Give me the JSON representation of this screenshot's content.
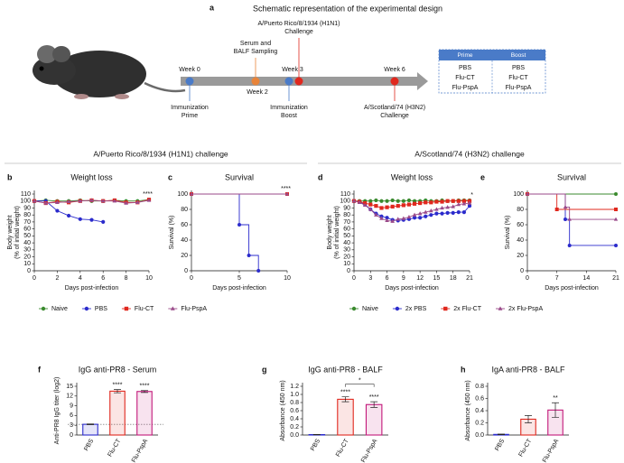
{
  "schematic": {
    "label": "a",
    "title": "Schematic representation of the experimental design",
    "weeks": [
      "Week 0",
      "Week 2",
      "Week 3",
      "Week 6"
    ],
    "events": [
      {
        "lines": [
          "Immunization",
          "Prime"
        ]
      },
      {
        "lines": [
          "Serum and",
          "BALF Sampling"
        ]
      },
      {
        "lines": [
          "A/Puerto Rico/8/1934 (H1N1)",
          "Challenge"
        ]
      },
      {
        "lines": [
          "Immunization",
          "Boost"
        ]
      },
      {
        "lines": [
          "A/Scotland/74 (H3N2)",
          "Challenge"
        ]
      }
    ],
    "table": {
      "header": [
        "Prime",
        "Boost"
      ],
      "rows": [
        [
          "PBS",
          "PBS"
        ],
        [
          "Flu-CT",
          "Flu-CT"
        ],
        [
          "Flu-PspA",
          "Flu-PspA"
        ]
      ]
    }
  },
  "sections": [
    "A/Puerto Rico/8/1934 (H1N1) challenge",
    "A/Scotland/74 (H3N2) challenge"
  ],
  "chart_data": [
    {
      "type": "line",
      "label": "b",
      "title": "Weight loss",
      "xlabel": "Days post-infection",
      "ylabel": [
        "Body weight",
        "(% of initial weight)"
      ],
      "x": [
        0,
        1,
        2,
        3,
        4,
        5,
        6,
        7,
        8,
        9,
        10
      ],
      "xlim": [
        0,
        10
      ],
      "xticks": [
        0,
        2,
        4,
        6,
        8,
        10
      ],
      "ylim": [
        0,
        110
      ],
      "yticks": [
        0,
        10,
        20,
        30,
        40,
        50,
        60,
        70,
        80,
        90,
        100,
        110
      ],
      "annotation": "****",
      "series": [
        {
          "name": "Naive",
          "color": "#3a8a2e",
          "marker": "circle",
          "values": [
            100,
            101,
            100,
            100,
            101,
            100,
            100,
            101,
            100,
            100,
            102
          ]
        },
        {
          "name": "PBS",
          "color": "#2b2bcc",
          "marker": "circle",
          "values": [
            100,
            100,
            86,
            79,
            74,
            73,
            70,
            null,
            null,
            null,
            null
          ]
        },
        {
          "name": "Flu-CT",
          "color": "#e0281e",
          "marker": "square",
          "values": [
            100,
            97,
            99,
            98,
            100,
            101,
            100,
            101,
            98,
            98,
            102
          ]
        },
        {
          "name": "Flu-PspA",
          "color": "#9a4a8a",
          "marker": "triangle",
          "values": [
            100,
            97,
            98,
            99,
            100,
            101,
            100,
            100,
            97,
            98,
            101
          ]
        }
      ]
    },
    {
      "type": "step",
      "label": "c",
      "title": "Survival",
      "xlabel": "Days post-infection",
      "ylabel": "Survival (%)",
      "xlim": [
        0,
        10
      ],
      "xticks": [
        0,
        5,
        10
      ],
      "ylim": [
        0,
        100
      ],
      "yticks": [
        0,
        20,
        40,
        60,
        80,
        100
      ],
      "annotation": "****",
      "series": [
        {
          "name": "Naive",
          "color": "#3a8a2e",
          "marker": "circle",
          "x": [
            0,
            10
          ],
          "values": [
            100,
            100
          ]
        },
        {
          "name": "PBS",
          "color": "#2b2bcc",
          "marker": "circle",
          "x": [
            0,
            5,
            6,
            7
          ],
          "values": [
            100,
            60,
            20,
            0
          ]
        },
        {
          "name": "Flu-CT",
          "color": "#e0281e",
          "marker": "square",
          "x": [
            0,
            10
          ],
          "values": [
            100,
            100
          ]
        },
        {
          "name": "Flu-PspA",
          "color": "#9a4a8a",
          "marker": "triangle",
          "x": [
            0,
            10
          ],
          "values": [
            100,
            100
          ]
        }
      ]
    },
    {
      "type": "line",
      "label": "d",
      "title": "Weight loss",
      "xlabel": "Days post-infection",
      "ylabel": [
        "Body weight",
        "(% of initial weight)"
      ],
      "x": [
        0,
        1,
        2,
        3,
        4,
        5,
        6,
        7,
        8,
        9,
        10,
        11,
        12,
        13,
        14,
        15,
        16,
        17,
        18,
        19,
        20,
        21
      ],
      "xlim": [
        0,
        21
      ],
      "xticks": [
        0,
        3,
        6,
        9,
        12,
        15,
        18,
        21
      ],
      "ylim": [
        0,
        110
      ],
      "yticks": [
        0,
        10,
        20,
        30,
        40,
        50,
        60,
        70,
        80,
        90,
        100,
        110
      ],
      "annotation": "*",
      "series": [
        {
          "name": "Naive",
          "color": "#3a8a2e",
          "marker": "circle",
          "values": [
            100,
            100,
            100,
            100,
            101,
            100,
            100,
            101,
            100,
            100,
            101,
            100,
            100,
            101,
            100,
            100,
            101,
            100,
            100,
            101,
            101,
            101
          ]
        },
        {
          "name": "2x PBS",
          "color": "#2b2bcc",
          "marker": "circle",
          "values": [
            100,
            99,
            95,
            88,
            82,
            78,
            76,
            73,
            72,
            73,
            74,
            76,
            76,
            78,
            80,
            82,
            82,
            83,
            83,
            84,
            84,
            93
          ]
        },
        {
          "name": "2x Flu-CT",
          "color": "#e0281e",
          "marker": "square",
          "values": [
            100,
            99,
            97,
            95,
            93,
            90,
            91,
            92,
            93,
            94,
            95,
            96,
            97,
            98,
            98,
            99,
            99,
            100,
            100,
            100,
            100,
            100
          ]
        },
        {
          "name": "2x Flu-PspA",
          "color": "#9a4a8a",
          "marker": "triangle",
          "values": [
            100,
            98,
            94,
            88,
            80,
            75,
            72,
            71,
            74,
            75,
            77,
            80,
            82,
            84,
            86,
            88,
            90,
            91,
            92,
            95,
            96,
            97
          ]
        }
      ]
    },
    {
      "type": "step",
      "label": "e",
      "title": "Survival",
      "xlabel": "Days post-infection",
      "ylabel": "Survival (%)",
      "xlim": [
        0,
        21
      ],
      "xticks": [
        0,
        7,
        14,
        21
      ],
      "ylim": [
        0,
        100
      ],
      "yticks": [
        0,
        20,
        40,
        60,
        80,
        100
      ],
      "series": [
        {
          "name": "Naive",
          "color": "#3a8a2e",
          "marker": "circle",
          "x": [
            0,
            21
          ],
          "values": [
            100,
            100
          ]
        },
        {
          "name": "2x PBS",
          "color": "#2b2bcc",
          "marker": "circle",
          "x": [
            0,
            9,
            10,
            21
          ],
          "values": [
            100,
            67,
            33,
            33
          ]
        },
        {
          "name": "2x Flu-CT",
          "color": "#e0281e",
          "marker": "square",
          "x": [
            0,
            7,
            21
          ],
          "values": [
            100,
            80,
            80
          ]
        },
        {
          "name": "2x Flu-PspA",
          "color": "#9a4a8a",
          "marker": "triangle",
          "x": [
            0,
            9,
            10,
            21
          ],
          "values": [
            100,
            83,
            67,
            67
          ]
        }
      ]
    },
    {
      "type": "bar",
      "label": "f",
      "title": "IgG anti-PR8 - Serum",
      "ylabel": "Anti-PR8 IgG titer (log2)",
      "categories": [
        "PBS",
        "Flu-CT",
        "Flu-PspA"
      ],
      "values": [
        3.3,
        13.5,
        13.4
      ],
      "errors": [
        0.1,
        0.5,
        0.3
      ],
      "colors": [
        "#2b2bcc",
        "#e0281e",
        "#c2187a"
      ],
      "value_annotations": [
        null,
        "****",
        "****"
      ],
      "reference_line": 3.3,
      "ylim": [
        0,
        15
      ],
      "yticks": [
        0,
        3,
        6,
        9,
        12,
        15
      ]
    },
    {
      "type": "bar",
      "label": "g",
      "title": "IgG anti-PR8 - BALF",
      "ylabel": "Absorbance (450 nm)",
      "categories": [
        "PBS",
        "Flu-CT",
        "Flu-PspA"
      ],
      "values": [
        0.01,
        0.88,
        0.75
      ],
      "errors": [
        0.005,
        0.06,
        0.07
      ],
      "colors": [
        "#2b2bcc",
        "#e0281e",
        "#c2187a"
      ],
      "value_annotations": [
        null,
        "****",
        "****"
      ],
      "comparison_label": "*",
      "ylim": [
        0,
        1.2
      ],
      "yticks": [
        {
          "value": 0,
          "label": "0.0"
        },
        0.2,
        0.4,
        0.6,
        0.8,
        {
          "value": 1,
          "label": "1.0"
        },
        1.2
      ]
    },
    {
      "type": "bar",
      "label": "h",
      "title": "IgA anti-PR8 - BALF",
      "ylabel": "Absorbance (450 nm)",
      "categories": [
        "PBS",
        "Flu-CT",
        "Flu-PspA"
      ],
      "values": [
        0.01,
        0.26,
        0.41
      ],
      "errors": [
        0.005,
        0.06,
        0.12
      ],
      "colors": [
        "#2b2bcc",
        "#e0281e",
        "#c2187a"
      ],
      "value_annotations": [
        null,
        null,
        "**"
      ],
      "ylim": [
        0,
        0.8
      ],
      "yticks": [
        {
          "value": 0,
          "label": "0.0"
        },
        0.2,
        0.4,
        0.6,
        0.8
      ]
    }
  ]
}
